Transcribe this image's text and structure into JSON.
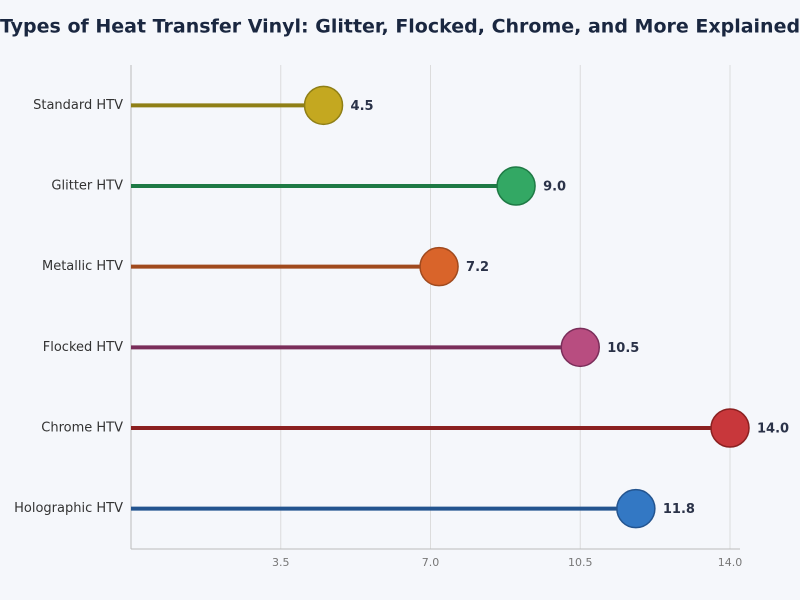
{
  "chart_data": {
    "type": "lollipop",
    "title": "Types of Heat Transfer Vinyl: Glitter, Flocked, Chrome, and More Explained",
    "categories": [
      "Standard HTV",
      "Glitter HTV",
      "Metallic HTV",
      "Flocked HTV",
      "Chrome HTV",
      "Holographic HTV"
    ],
    "values": [
      4.5,
      9.0,
      7.2,
      10.5,
      14.0,
      11.8
    ],
    "value_labels": [
      "4.5",
      "9.0",
      "7.2",
      "10.5",
      "14.0",
      "11.8"
    ],
    "colors": [
      "#c4a820",
      "#33a864",
      "#d9642a",
      "#b84d80",
      "#c8373b",
      "#3378c4"
    ],
    "stem_colors": [
      "#8f7f16",
      "#1e7a45",
      "#a04a1e",
      "#7a2e5a",
      "#8b2020",
      "#23548f"
    ],
    "xlim": [
      0,
      14
    ],
    "xticks": [
      3.5,
      {
        "value": 7,
        "label": "7.0"
      },
      10.5,
      {
        "value": 14,
        "label": "14.0"
      }
    ],
    "grid": true
  }
}
